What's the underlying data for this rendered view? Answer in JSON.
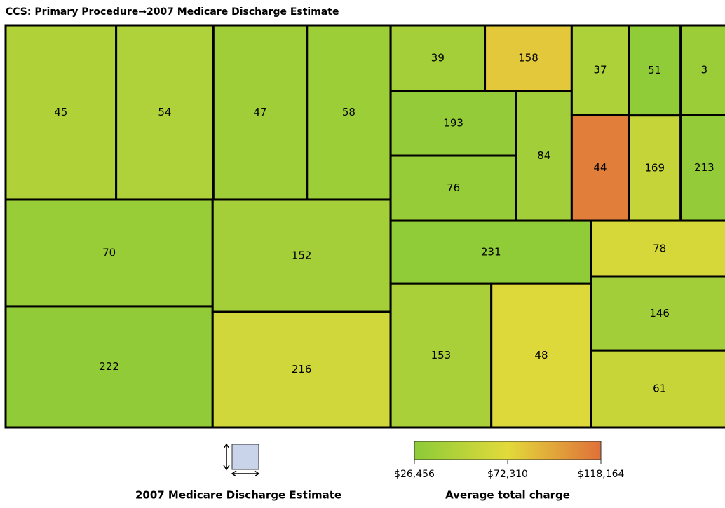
{
  "chart_data": {
    "type": "treemap",
    "title": "CCS: Primary Procedure→2007 Medicare Discharge Estimate",
    "size_legend_title": "2007 Medicare Discharge Estimate",
    "color_legend_title": "Average total charge",
    "colorscale": [
      "#8ccb38",
      "#e2da3a",
      "#e0703a"
    ],
    "clim": [
      26456,
      118164
    ],
    "cticks": [
      {
        "value": 26456,
        "label": "$26,456"
      },
      {
        "value": 72310,
        "label": "$72,310"
      },
      {
        "value": 118164,
        "label": "$118,164"
      }
    ],
    "tiles": [
      {
        "label": "45",
        "size": 391,
        "color_value": 46000
      },
      {
        "label": "54",
        "size": 344,
        "color_value": 45000
      },
      {
        "label": "47",
        "size": 331,
        "color_value": 37000
      },
      {
        "label": "58",
        "size": 296,
        "color_value": 35000
      },
      {
        "label": "70",
        "size": 447,
        "color_value": 33000
      },
      {
        "label": "222",
        "size": 509,
        "color_value": 29000
      },
      {
        "label": "152",
        "size": 405,
        "color_value": 40000
      },
      {
        "label": "216",
        "size": 417,
        "color_value": 62000
      },
      {
        "label": "39",
        "size": 126,
        "color_value": 39000
      },
      {
        "label": "158",
        "size": 116,
        "color_value": 80000
      },
      {
        "label": "193",
        "size": 164,
        "color_value": 30000
      },
      {
        "label": "76",
        "size": 166,
        "color_value": 31000
      },
      {
        "label": "84",
        "size": 146,
        "color_value": 38000
      },
      {
        "label": "37",
        "size": 104,
        "color_value": 44000
      },
      {
        "label": "44",
        "size": 122,
        "color_value": 112000
      },
      {
        "label": "51",
        "size": 95,
        "color_value": 28000
      },
      {
        "label": "169",
        "size": 111,
        "color_value": 57000
      },
      {
        "label": "3",
        "size": 86,
        "color_value": 34000
      },
      {
        "label": "213",
        "size": 101,
        "color_value": 30000
      },
      {
        "label": "231",
        "size": 257,
        "color_value": 28000
      },
      {
        "label": "153",
        "size": 293,
        "color_value": 42000
      },
      {
        "label": "48",
        "size": 291,
        "color_value": 70000
      },
      {
        "label": "78",
        "size": 155,
        "color_value": 66000
      },
      {
        "label": "146",
        "size": 204,
        "color_value": 38000
      },
      {
        "label": "61",
        "size": 213,
        "color_value": 58000
      }
    ]
  }
}
